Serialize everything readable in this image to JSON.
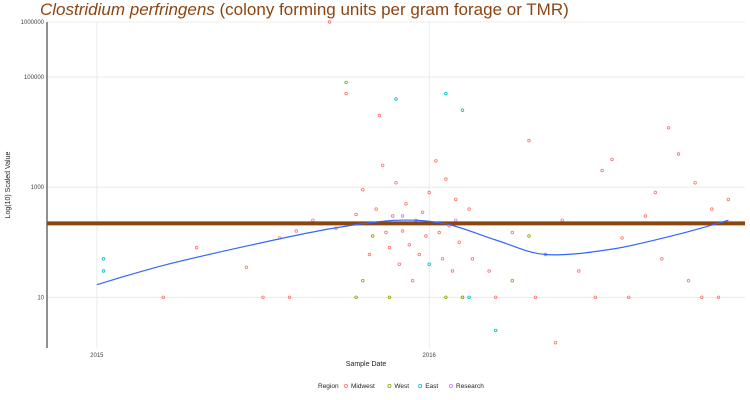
{
  "chart_data": {
    "type": "scatter",
    "title_italic": "Clostridium perfringens",
    "title_rest": " (colony forming units per gram forage or TMR)",
    "xlabel": "Sample Date",
    "ylabel": "Log(10) Scaled Value",
    "y_scale": "log10",
    "ylim": [
      1.2,
      1000000
    ],
    "xlim": [
      2014.85,
      2016.95
    ],
    "x_ticks": [
      {
        "value": 2015,
        "label": "2015"
      },
      {
        "value": 2016,
        "label": "2016"
      }
    ],
    "y_ticks": [
      {
        "value": 10,
        "label": "10"
      },
      {
        "value": 1000,
        "label": "1000"
      },
      {
        "value": 100000,
        "label": "100000"
      },
      {
        "value": 1000000,
        "label": "1000000"
      }
    ],
    "grid": true,
    "legend": {
      "title": "Region",
      "position": "bottom",
      "entries": [
        {
          "name": "Midwest",
          "color": "#F8766D"
        },
        {
          "name": "West",
          "color": "#7CAE00"
        },
        {
          "name": "East",
          "color": "#00BFC4"
        },
        {
          "name": "Research",
          "color": "#C77CFF"
        }
      ]
    },
    "reference_line": {
      "y": 220,
      "color": "#8B4513"
    },
    "smooth_line": {
      "color": "#3366FF",
      "points": [
        [
          2015.0,
          17
        ],
        [
          2015.2,
          38
        ],
        [
          2015.45,
          85
        ],
        [
          2015.7,
          175
        ],
        [
          2015.9,
          250
        ],
        [
          2016.05,
          215
        ],
        [
          2016.2,
          110
        ],
        [
          2016.35,
          60
        ],
        [
          2016.55,
          75
        ],
        [
          2016.75,
          140
        ],
        [
          2016.9,
          250
        ]
      ]
    },
    "series": [
      {
        "name": "Midwest",
        "color": "#F8766D",
        "points": [
          [
            2015.2,
            10
          ],
          [
            2015.3,
            80
          ],
          [
            2015.45,
            35
          ],
          [
            2015.5,
            10
          ],
          [
            2015.55,
            120
          ],
          [
            2015.58,
            10
          ],
          [
            2015.6,
            160
          ],
          [
            2015.65,
            250
          ],
          [
            2015.7,
            1000000
          ],
          [
            2015.72,
            180
          ],
          [
            2015.75,
            50000
          ],
          [
            2015.78,
            320
          ],
          [
            2015.8,
            900
          ],
          [
            2015.82,
            60
          ],
          [
            2015.84,
            400
          ],
          [
            2015.85,
            20000
          ],
          [
            2015.86,
            2500
          ],
          [
            2015.87,
            150
          ],
          [
            2015.88,
            80
          ],
          [
            2015.89,
            300
          ],
          [
            2015.9,
            1200
          ],
          [
            2015.91,
            40
          ],
          [
            2015.92,
            160
          ],
          [
            2015.93,
            500
          ],
          [
            2015.94,
            90
          ],
          [
            2015.95,
            20
          ],
          [
            2015.96,
            250
          ],
          [
            2015.97,
            60
          ],
          [
            2015.98,
            350
          ],
          [
            2015.99,
            130
          ],
          [
            2016.0,
            800
          ],
          [
            2016.02,
            3000
          ],
          [
            2016.03,
            150
          ],
          [
            2016.04,
            50
          ],
          [
            2016.05,
            1400
          ],
          [
            2016.06,
            200
          ],
          [
            2016.07,
            30
          ],
          [
            2016.08,
            600
          ],
          [
            2016.09,
            100
          ],
          [
            2016.1,
            10
          ],
          [
            2016.12,
            400
          ],
          [
            2016.13,
            50
          ],
          [
            2016.15,
            220
          ],
          [
            2016.18,
            30
          ],
          [
            2016.2,
            10
          ],
          [
            2016.25,
            150
          ],
          [
            2016.3,
            7000
          ],
          [
            2016.32,
            10
          ],
          [
            2016.35,
            60
          ],
          [
            2016.38,
            1.5
          ],
          [
            2016.4,
            250
          ],
          [
            2016.45,
            30
          ],
          [
            2016.5,
            10
          ],
          [
            2016.52,
            2000
          ],
          [
            2016.55,
            3200
          ],
          [
            2016.58,
            120
          ],
          [
            2016.6,
            10
          ],
          [
            2016.65,
            300
          ],
          [
            2016.68,
            800
          ],
          [
            2016.7,
            50
          ],
          [
            2016.72,
            12000
          ],
          [
            2016.75,
            4000
          ],
          [
            2016.78,
            20
          ],
          [
            2016.8,
            1200
          ],
          [
            2016.82,
            10
          ],
          [
            2016.85,
            400
          ],
          [
            2016.87,
            10
          ],
          [
            2016.9,
            600
          ]
        ]
      },
      {
        "name": "West",
        "color": "#7CAE00",
        "points": [
          [
            2015.75,
            80000
          ],
          [
            2015.78,
            10
          ],
          [
            2015.8,
            20
          ],
          [
            2015.83,
            130
          ],
          [
            2015.88,
            10
          ],
          [
            2016.05,
            10
          ],
          [
            2016.1,
            10
          ],
          [
            2016.25,
            20
          ],
          [
            2016.3,
            130
          ]
        ]
      },
      {
        "name": "East",
        "color": "#00BFC4",
        "points": [
          [
            2015.02,
            30
          ],
          [
            2015.02,
            50
          ],
          [
            2015.9,
            40000
          ],
          [
            2016.0,
            40
          ],
          [
            2016.05,
            50000
          ],
          [
            2016.1,
            25000
          ],
          [
            2016.12,
            10
          ],
          [
            2016.2,
            2.5
          ]
        ]
      },
      {
        "name": "Research",
        "color": "#C77CFF",
        "points": [
          [
            2015.92,
            300
          ],
          [
            2016.08,
            250
          ]
        ]
      }
    ]
  }
}
